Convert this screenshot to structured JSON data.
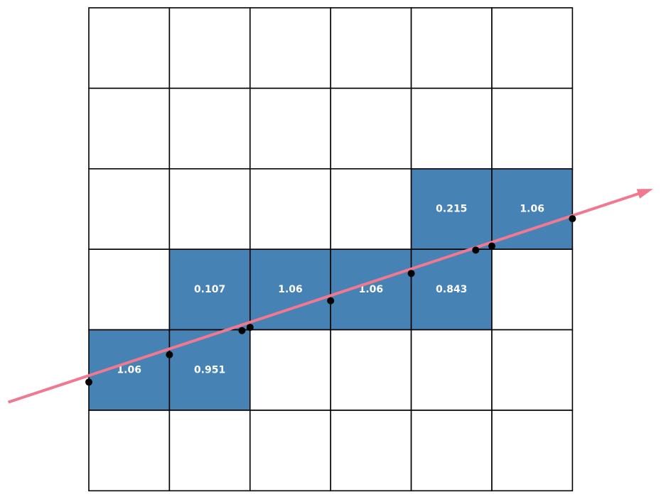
{
  "diagram": {
    "grid": {
      "rows": 6,
      "cols": 6
    },
    "colors": {
      "filled_cell": "#4682b4",
      "empty_cell": "#ffffff",
      "grid_line": "#000000",
      "ray": "#f07890",
      "point": "#000000",
      "label": "#ffffff"
    },
    "filled_cells": [
      {
        "row": 2,
        "col": 4,
        "label": "0.215"
      },
      {
        "row": 2,
        "col": 5,
        "label": "1.06"
      },
      {
        "row": 3,
        "col": 1,
        "label": "0.107"
      },
      {
        "row": 3,
        "col": 2,
        "label": "1.06"
      },
      {
        "row": 3,
        "col": 3,
        "label": "1.06"
      },
      {
        "row": 3,
        "col": 4,
        "label": "0.843"
      },
      {
        "row": 4,
        "col": 0,
        "label": "1.06"
      },
      {
        "row": 4,
        "col": 1,
        "label": "0.951"
      }
    ],
    "ray": {
      "start": [
        -1.0,
        1.1
      ],
      "end": [
        7.0,
        3.75
      ]
    },
    "intersection_points": [
      [
        0.0,
        1.35
      ],
      [
        1.0,
        1.69
      ],
      [
        1.9,
        1.99
      ],
      [
        2.0,
        2.03
      ],
      [
        3.0,
        2.36
      ],
      [
        4.0,
        2.7
      ],
      [
        4.8,
        2.99
      ],
      [
        5.0,
        3.04
      ],
      [
        6.0,
        3.38
      ]
    ]
  }
}
